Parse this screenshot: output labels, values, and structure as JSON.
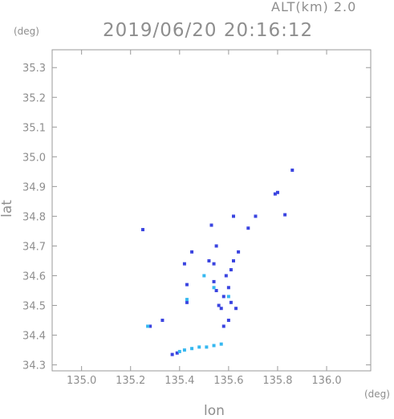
{
  "header": {
    "alt_label": "ALT(km) 2.0",
    "timestamp": "2019/06/20 20:16:12"
  },
  "chart_data": {
    "type": "scatter",
    "title": "2019/06/20 20:16:12",
    "xlabel": "lon",
    "ylabel": "lat",
    "x_unit": "(deg)",
    "y_unit": "(deg)",
    "xlim": [
      134.88,
      136.18
    ],
    "ylim": [
      34.28,
      35.36
    ],
    "x_ticks": [
      135.0,
      135.2,
      135.4,
      135.6,
      135.8,
      136.0
    ],
    "x_tick_labels": [
      "135.0",
      "135.2",
      "135.4",
      "135.6",
      "135.8",
      "136.0"
    ],
    "y_ticks": [
      34.3,
      34.4,
      34.5,
      34.6,
      34.7,
      34.8,
      34.9,
      35.0,
      35.1,
      35.2,
      35.3
    ],
    "y_tick_labels": [
      "34.3",
      "34.4",
      "34.5",
      "34.6",
      "34.7",
      "34.8",
      "34.9",
      "35.0",
      "35.1",
      "35.2",
      "35.3"
    ],
    "grid": false,
    "colors": {
      "blue": "#3a44e0",
      "cyan": "#36b8f0",
      "axis": "#9a9a9a",
      "text": "#8e8e8e"
    },
    "series": [
      {
        "color": "blue",
        "points": [
          [
            135.25,
            34.755
          ],
          [
            135.28,
            34.43
          ],
          [
            135.33,
            34.45
          ],
          [
            135.37,
            34.335
          ],
          [
            135.39,
            34.34
          ],
          [
            135.42,
            34.64
          ],
          [
            135.43,
            34.57
          ],
          [
            135.43,
            34.51
          ],
          [
            135.45,
            34.68
          ],
          [
            135.52,
            34.65
          ],
          [
            135.53,
            34.77
          ],
          [
            135.55,
            34.7
          ],
          [
            135.54,
            34.64
          ],
          [
            135.54,
            34.58
          ],
          [
            135.55,
            34.55
          ],
          [
            135.56,
            34.5
          ],
          [
            135.57,
            34.49
          ],
          [
            135.58,
            34.53
          ],
          [
            135.59,
            34.6
          ],
          [
            135.6,
            34.56
          ],
          [
            135.61,
            34.62
          ],
          [
            135.62,
            34.65
          ],
          [
            135.61,
            34.51
          ],
          [
            135.63,
            34.49
          ],
          [
            135.64,
            34.68
          ],
          [
            135.6,
            34.45
          ],
          [
            135.58,
            34.43
          ],
          [
            135.62,
            34.8
          ],
          [
            135.68,
            34.76
          ],
          [
            135.71,
            34.8
          ],
          [
            135.8,
            34.88
          ],
          [
            135.79,
            34.875
          ],
          [
            135.83,
            34.805
          ],
          [
            135.86,
            34.955
          ]
        ]
      },
      {
        "color": "cyan",
        "points": [
          [
            135.27,
            34.43
          ],
          [
            135.4,
            34.345
          ],
          [
            135.42,
            34.35
          ],
          [
            135.45,
            34.355
          ],
          [
            135.48,
            34.36
          ],
          [
            135.51,
            34.36
          ],
          [
            135.54,
            34.365
          ],
          [
            135.57,
            34.37
          ],
          [
            135.5,
            34.6
          ],
          [
            135.54,
            34.56
          ],
          [
            135.6,
            34.53
          ],
          [
            135.43,
            34.52
          ]
        ]
      }
    ]
  }
}
